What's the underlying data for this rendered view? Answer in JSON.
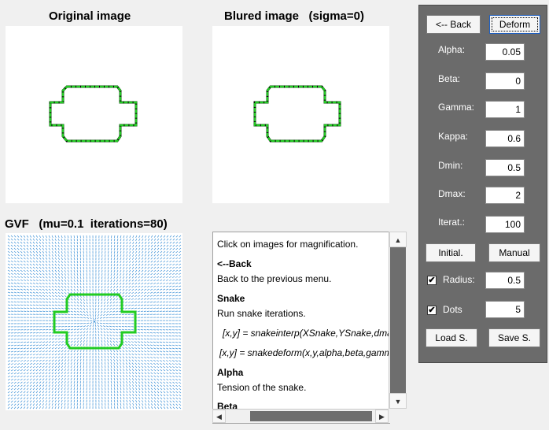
{
  "titles": {
    "original": "Original image",
    "blurred": "Blured image   (sigma=0)",
    "gvf": "GVF   (mu=0.1  iterations=80)"
  },
  "controls": {
    "back_label": "<-- Back",
    "deform_label": "Deform",
    "params": [
      {
        "label": "Alpha:",
        "value": "0.05"
      },
      {
        "label": "Beta:",
        "value": "0"
      },
      {
        "label": "Gamma:",
        "value": "1"
      },
      {
        "label": "Kappa:",
        "value": "0.6"
      },
      {
        "label": "Dmin:",
        "value": "0.5"
      },
      {
        "label": "Dmax:",
        "value": "2"
      },
      {
        "label": "Iterat.:",
        "value": "100"
      }
    ],
    "initial_label": "Initial.",
    "manual_label": "Manual",
    "radius": {
      "label": "Radius:",
      "checked": true,
      "value": "0.5"
    },
    "dots": {
      "label": "Dots",
      "checked": true,
      "value": "5"
    },
    "load_label": "Load S.",
    "save_label": "Save S."
  },
  "help": {
    "intro": "Click on images for magnification.",
    "back_heading": "<--Back",
    "back_desc": "Back to the previous menu.",
    "snake_heading": "Snake",
    "snake_desc": "Run snake iterations.",
    "code1": "[x,y] = snakeinterp(XSnake,YSnake,dmax,",
    "code2": "[x,y] = snakedeform(x,y,alpha,beta,gamma",
    "alpha_heading": "Alpha",
    "alpha_desc": "Tension of the snake.",
    "beta_heading": "Beta"
  },
  "colors": {
    "snake": "#22cc22",
    "shape": "#000000",
    "field": "#3a8fd6",
    "panel": "#6b6b6b"
  }
}
